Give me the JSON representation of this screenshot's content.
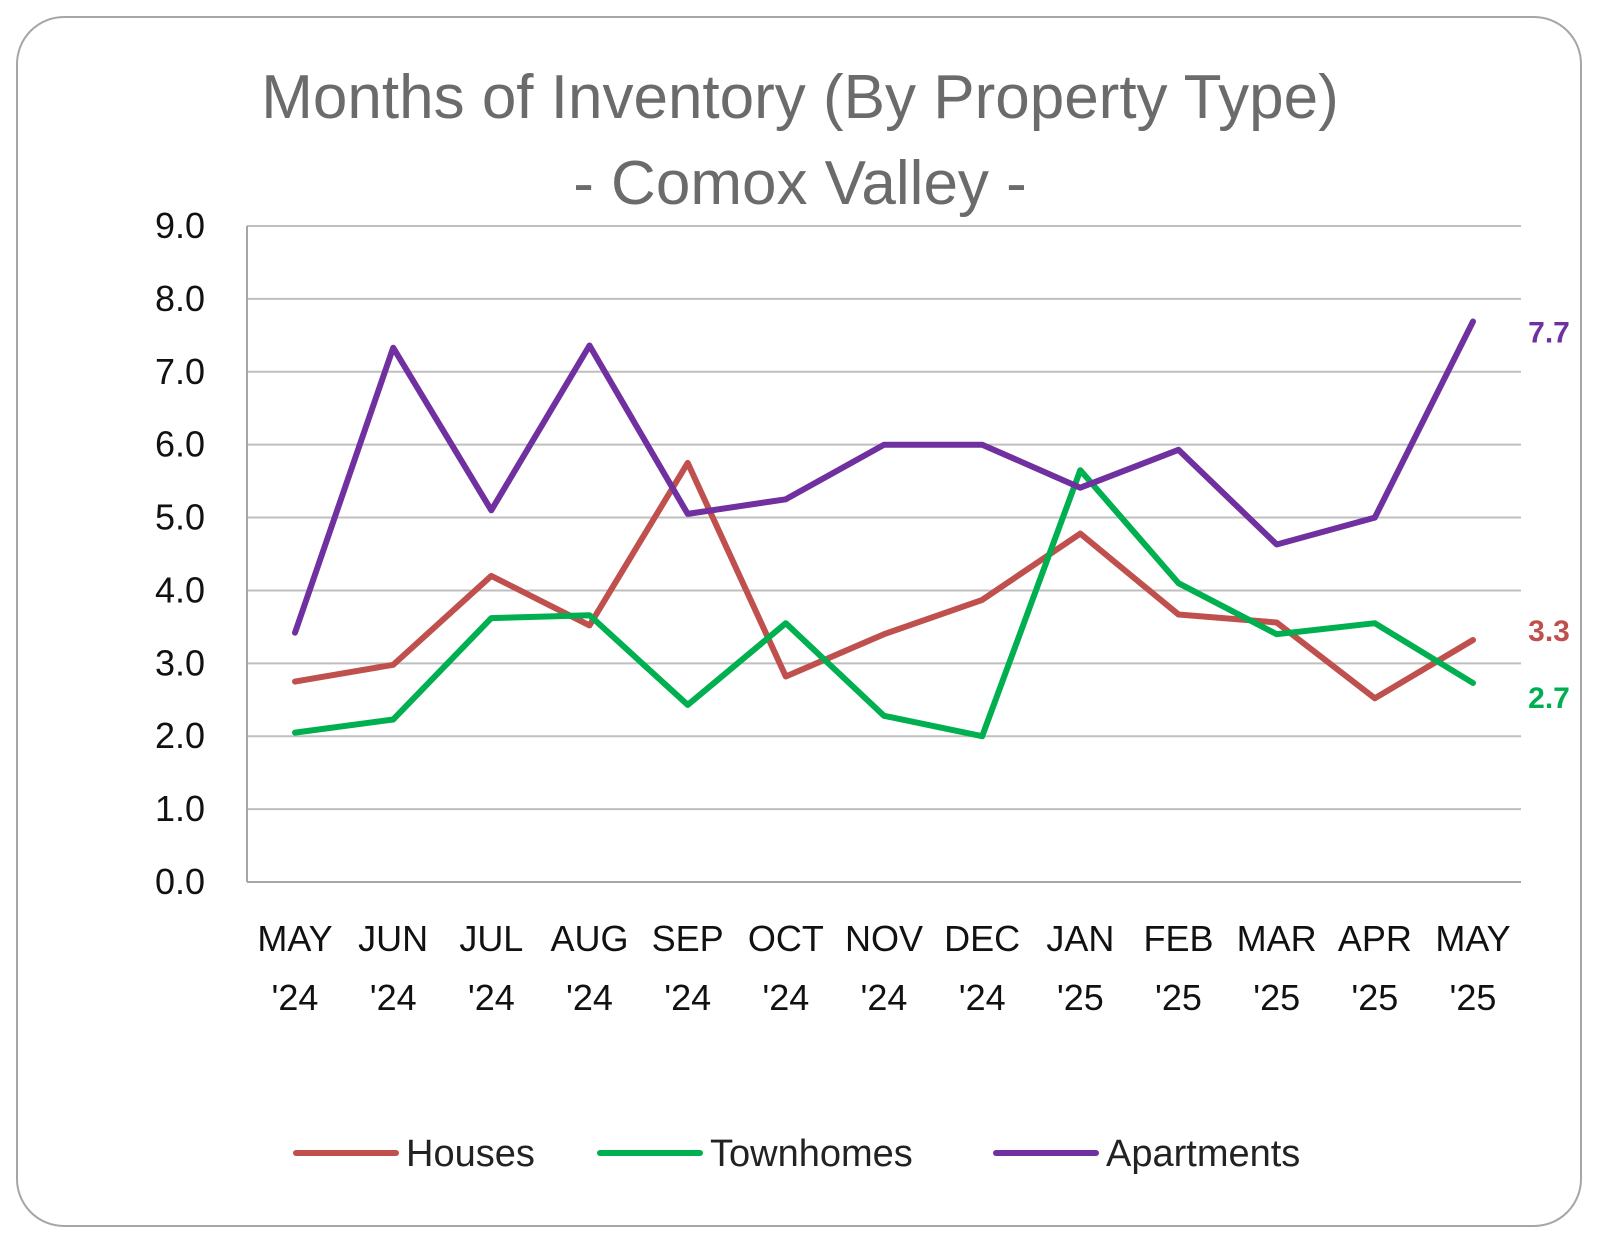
{
  "chart_data": {
    "type": "line",
    "title": "Months of Inventory (By Property Type)",
    "subtitle": "- Comox Valley -",
    "xlabel": "",
    "ylabel": "",
    "ylim": [
      0,
      9
    ],
    "yticks": [
      "0.0",
      "1.0",
      "2.0",
      "3.0",
      "4.0",
      "5.0",
      "6.0",
      "7.0",
      "8.0",
      "9.0"
    ],
    "categories": [
      [
        "MAY",
        "'24"
      ],
      [
        "JUN",
        "'24"
      ],
      [
        "JUL",
        "'24"
      ],
      [
        "AUG",
        "'24"
      ],
      [
        "SEP",
        "'24"
      ],
      [
        "OCT",
        "'24"
      ],
      [
        "NOV",
        "'24"
      ],
      [
        "DEC",
        "'24"
      ],
      [
        "JAN",
        "'25"
      ],
      [
        "FEB",
        "'25"
      ],
      [
        "MAR",
        "'25"
      ],
      [
        "APR",
        "'25"
      ],
      [
        "MAY",
        "'25"
      ]
    ],
    "grid": "horizontal",
    "legend_position": "bottom",
    "series": [
      {
        "name": "Houses",
        "color": "#c0504d",
        "values": [
          2.75,
          2.98,
          4.2,
          3.52,
          5.75,
          2.82,
          3.4,
          3.87,
          4.78,
          3.67,
          3.56,
          2.52,
          3.32
        ],
        "end_label": "3.3"
      },
      {
        "name": "Townhomes",
        "color": "#00b050",
        "values": [
          2.05,
          2.23,
          3.62,
          3.66,
          2.43,
          3.55,
          2.28,
          2.0,
          5.65,
          4.1,
          3.4,
          3.55,
          2.73
        ],
        "end_label": "2.7"
      },
      {
        "name": "Apartments",
        "color": "#7030a0",
        "values": [
          3.42,
          7.33,
          5.1,
          7.36,
          5.05,
          5.25,
          6.0,
          6.0,
          5.41,
          5.93,
          4.63,
          5.0,
          7.69
        ],
        "end_label": "7.7"
      }
    ]
  }
}
